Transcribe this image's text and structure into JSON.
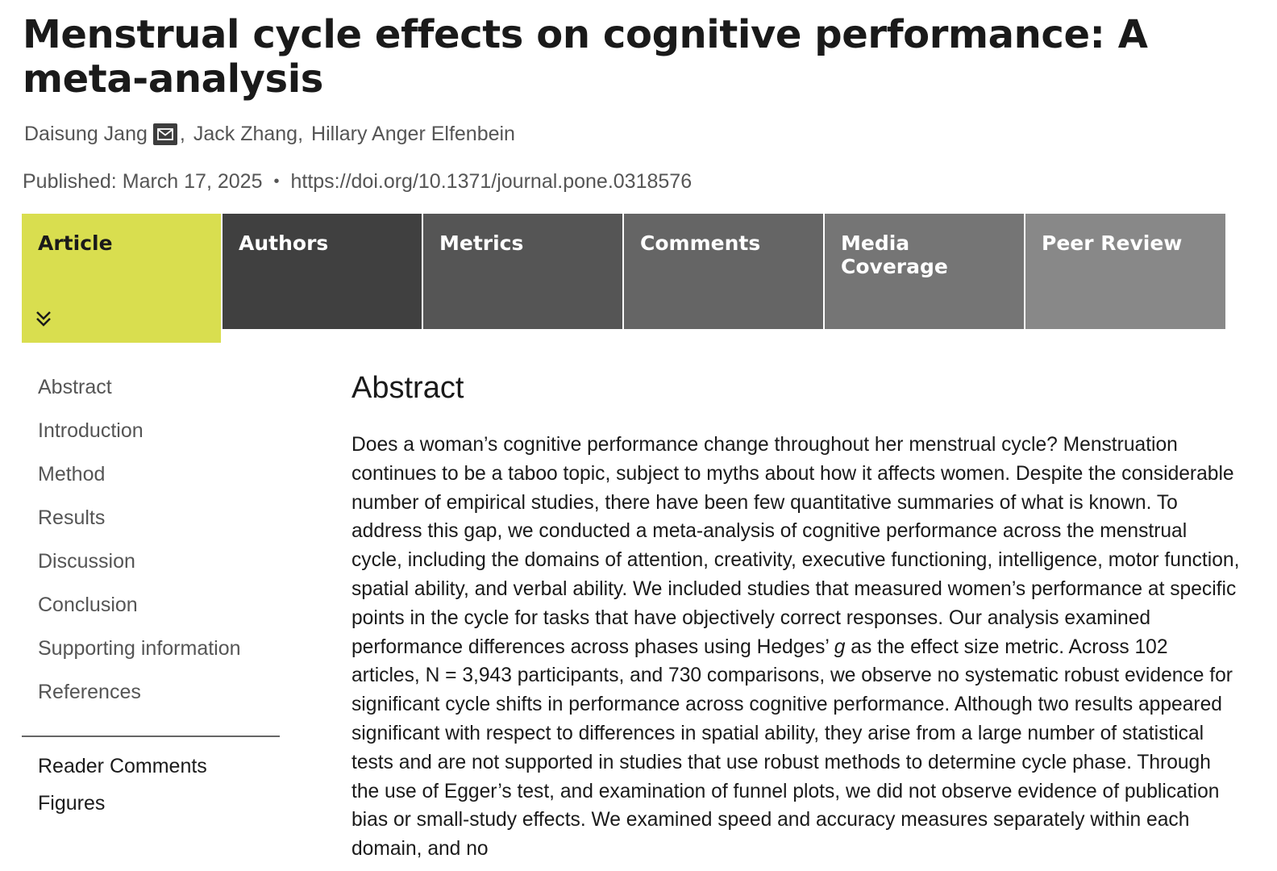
{
  "article": {
    "title": "Menstrual cycle effects on cognitive performance: A meta-analysis",
    "authors": [
      {
        "name": "Daisung Jang",
        "has_email_icon": true
      },
      {
        "name": "Jack Zhang"
      },
      {
        "name": "Hillary Anger Elfenbein"
      }
    ],
    "author_separator": ",",
    "published_label": "Published:",
    "published_date": "March 17, 2025",
    "bullet": "•",
    "doi": "https://doi.org/10.1371/journal.pone.0318576"
  },
  "tabs": [
    {
      "label": "Article",
      "active": true
    },
    {
      "label": "Authors"
    },
    {
      "label": "Metrics"
    },
    {
      "label": "Comments"
    },
    {
      "label": "Media Coverage"
    },
    {
      "label": "Peer Review"
    }
  ],
  "colors": {
    "active_tab": "#d9de4f",
    "tab_backgrounds": [
      "#d9de4f",
      "#404040",
      "#555555",
      "#656565",
      "#757575",
      "#888888"
    ]
  },
  "toc": {
    "sections": [
      "Abstract",
      "Introduction",
      "Method",
      "Results",
      "Discussion",
      "Conclusion",
      "Supporting information",
      "References"
    ],
    "extras": [
      "Reader Comments",
      "Figures"
    ]
  },
  "abstract": {
    "heading": "Abstract",
    "text_before_italic": "Does a woman’s cognitive performance change throughout her menstrual cycle? Menstruation continues to be a taboo topic, subject to myths about how it affects women. Despite the considerable number of empirical studies, there have been few quantitative summaries of what is known. To address this gap, we conducted a meta-analysis of cognitive performance across the menstrual cycle, including the domains of attention, creativity, executive functioning, intelligence, motor function, spatial ability, and verbal ability. We included studies that measured women’s performance at specific points in the cycle for tasks that have objectively correct responses. Our analysis examined performance differences across phases using Hedges’ ",
    "italic": "g",
    "text_after_italic": " as the effect size metric. Across 102 articles, N = 3,943 participants, and 730 comparisons, we observe no systematic robust evidence for significant cycle shifts in performance across cognitive performance. Although two results appeared significant with respect to differences in spatial ability, they arise from a large number of statistical tests and are not supported in studies that use robust methods to determine cycle phase. Through the use of Egger’s test, and examination of funnel plots, we did not observe evidence of publication bias or small-study effects. We examined speed and accuracy measures separately within each domain, and no"
  },
  "icons": {
    "email": "email-icon",
    "expand": "double-chevron-down-icon"
  }
}
